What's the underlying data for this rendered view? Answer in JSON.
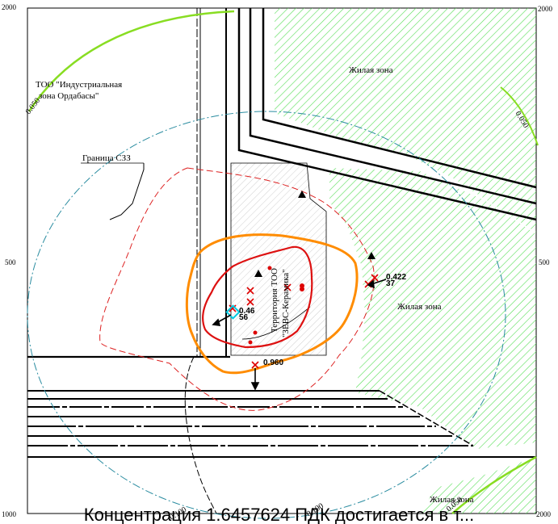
{
  "axes": {
    "corner_labels": {
      "top_left": "2000",
      "top_right": "2000",
      "left_mid": "500",
      "right_mid": "500",
      "bottom_left": "1000",
      "bottom_right": "2000"
    }
  },
  "labels": {
    "company_zone": "ТОО \"Индустриальная зона Ордабасы\"",
    "company_zone_line1": "ТОО \"Индустриальная",
    "company_zone_line2": "зона Ордабасы\"",
    "szz_boundary": "Граница СЗЗ",
    "residential_top": "Жилая зона",
    "residential_right": "Жилая зона",
    "residential_bottom": "Жилая зона",
    "territory_line1": "Территория ТОО",
    "territory_line2": "\"ЗЕВС-Керамика\""
  },
  "isolines": {
    "label_left": "0.050",
    "label_right": "0.050",
    "label_bottom_left": "0.100",
    "label_bottom_right": "0.100",
    "label_bottom_far": "0.050"
  },
  "point_values": {
    "v_right": "0.422",
    "v_right_b": "37",
    "v_left": "0.46",
    "v_left_b": "56",
    "v_bottom": "0.960"
  },
  "colors": {
    "residential_hatch": "#55dd55",
    "iso_green": "#88dd22",
    "iso_orange": "#ff8c00",
    "iso_red": "#dd1111",
    "iso_red_dashed": "#dd2222",
    "iso_teal": "#2a8ca0",
    "marker_red": "#dd0000",
    "marker_cyan": "#00c8e0"
  },
  "caption": "Концентрация 1.6457624 ПДК достигается в т..."
}
